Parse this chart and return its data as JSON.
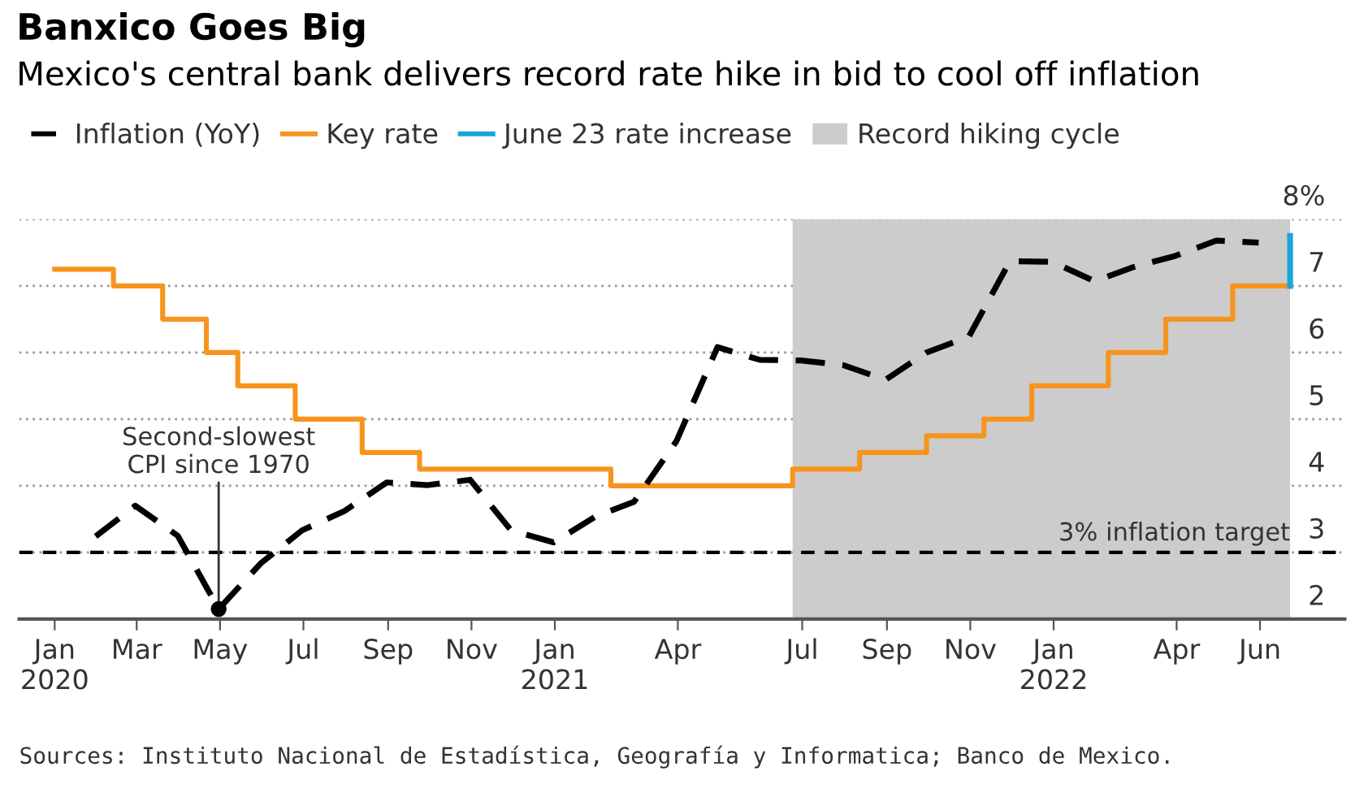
{
  "chart_data": {
    "type": "line",
    "title": "Banxico Goes Big",
    "subtitle": "Mexico's central bank delivers record rate hike in bid to cool off inflation",
    "series": [
      {
        "name": "Inflation (YoY)",
        "line_style": "dashed",
        "color": "#000000",
        "x": [
          "2020-01-31",
          "2020-02-29",
          "2020-03-31",
          "2020-04-30",
          "2020-05-31",
          "2020-06-30",
          "2020-07-31",
          "2020-08-31",
          "2020-09-30",
          "2020-10-31",
          "2020-11-30",
          "2020-12-31",
          "2021-01-31",
          "2021-02-28",
          "2021-03-31",
          "2021-04-30",
          "2021-05-31",
          "2021-06-30",
          "2021-07-31",
          "2021-08-31",
          "2021-09-30",
          "2021-10-31",
          "2021-11-30",
          "2021-12-31",
          "2022-01-31",
          "2022-02-28",
          "2022-03-31",
          "2022-04-30",
          "2022-05-31"
        ],
        "values": [
          3.24,
          3.7,
          3.25,
          2.15,
          2.84,
          3.33,
          3.62,
          4.05,
          4.01,
          4.09,
          3.33,
          3.15,
          3.54,
          3.76,
          4.67,
          6.08,
          5.89,
          5.88,
          5.81,
          5.59,
          6.0,
          6.24,
          7.37,
          7.36,
          7.07,
          7.28,
          7.45,
          7.68,
          7.65
        ]
      },
      {
        "name": "Key rate",
        "type": "step",
        "line_style": "solid",
        "color": "#f7941d",
        "x": [
          "2020-01-01",
          "2020-02-13",
          "2020-03-20",
          "2020-04-21",
          "2020-05-14",
          "2020-06-25",
          "2020-08-13",
          "2020-09-24",
          "2021-02-11",
          "2021-06-24",
          "2021-08-12",
          "2021-09-30",
          "2021-11-11",
          "2021-12-16",
          "2022-02-10",
          "2022-03-24",
          "2022-05-12",
          "2022-06-23"
        ],
        "values": [
          7.25,
          7.0,
          6.5,
          6.0,
          5.5,
          5.0,
          4.5,
          4.25,
          4.0,
          4.25,
          4.5,
          4.75,
          5.0,
          5.5,
          6.0,
          6.5,
          7.0,
          7.0
        ]
      },
      {
        "name": "June 23 rate increase",
        "line_style": "solid",
        "color": "#1ba5d8",
        "x": [
          "2022-06-23",
          "2022-06-23"
        ],
        "values": [
          7.0,
          7.75
        ]
      }
    ],
    "bands": [
      {
        "axis": "x",
        "from": "2021-06-24",
        "to": "2022-06-23",
        "label": "Record hiking cycle",
        "color": "#cccccc"
      }
    ],
    "ref_lines": [
      {
        "axis": "y",
        "value": 3,
        "label": "3% inflation target",
        "line_style": "dashed",
        "color": "#000000"
      }
    ],
    "annotations": [
      {
        "text": "Second-slowest\nCPI since 1970",
        "x": "2020-04-30",
        "y": 2.15
      },
      "Sources: Instituto Nacional de Estadística, Geografía y Informatica; Banco de Mexico."
    ],
    "xlim": [
      "2019-12-06",
      "2022-08-02"
    ],
    "xticks": [
      {
        "value": "2020-01-01",
        "label": "Jan\n2020"
      },
      {
        "value": "2020-03-01",
        "label": "Mar"
      },
      {
        "value": "2020-05-01",
        "label": "May"
      },
      {
        "value": "2020-07-01",
        "label": "Jul"
      },
      {
        "value": "2020-09-01",
        "label": "Sep"
      },
      {
        "value": "2020-11-01",
        "label": "Nov"
      },
      {
        "value": "2021-01-01",
        "label": "Jan\n2021"
      },
      {
        "value": "2021-04-01",
        "label": "Apr"
      },
      {
        "value": "2021-07-01",
        "label": "Jul"
      },
      {
        "value": "2021-09-01",
        "label": "Sep"
      },
      {
        "value": "2021-11-01",
        "label": "Nov"
      },
      {
        "value": "2022-01-01",
        "label": "Jan\n2022"
      },
      {
        "value": "2022-04-01",
        "label": "Apr"
      },
      {
        "value": "2022-06-01",
        "label": "Jun"
      }
    ],
    "ylim": [
      2,
      8
    ],
    "yticks": [
      2,
      3,
      4,
      5,
      6,
      7,
      {
        "value": 8,
        "label": "8%"
      }
    ],
    "grid": "y",
    "legend": "top"
  }
}
